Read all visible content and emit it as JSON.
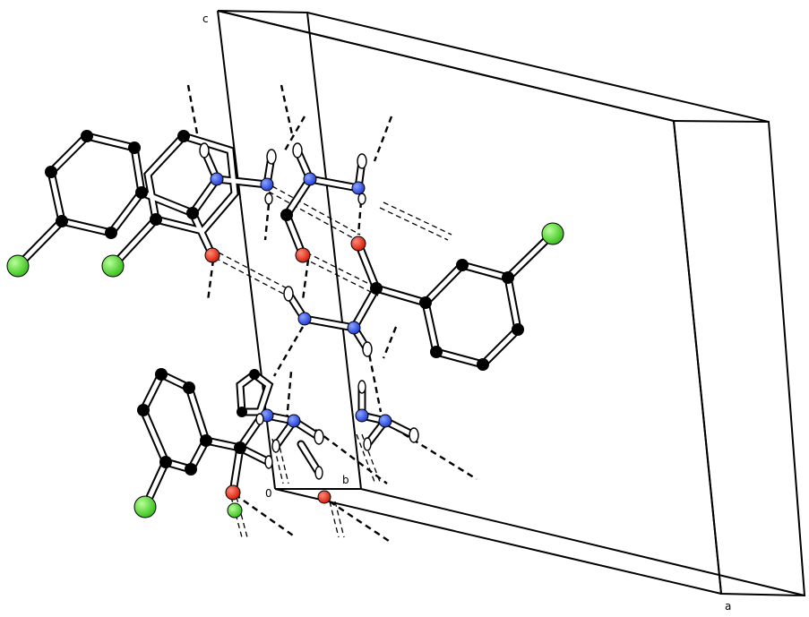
{
  "axes": {
    "a_label": "a",
    "b_label": "b",
    "c_label": "c",
    "origin_label": "0"
  },
  "colors": {
    "background": "#ffffff",
    "line": "#000000",
    "carbon": "#000000",
    "nitrogen": "#1f3fd6",
    "oxygen": "#e0200e",
    "chlorine": "#4ad12a",
    "hydrogen": "#ffffff"
  },
  "atom_types": [
    "carbon",
    "nitrogen",
    "oxygen",
    "chlorine",
    "hydrogen"
  ]
}
